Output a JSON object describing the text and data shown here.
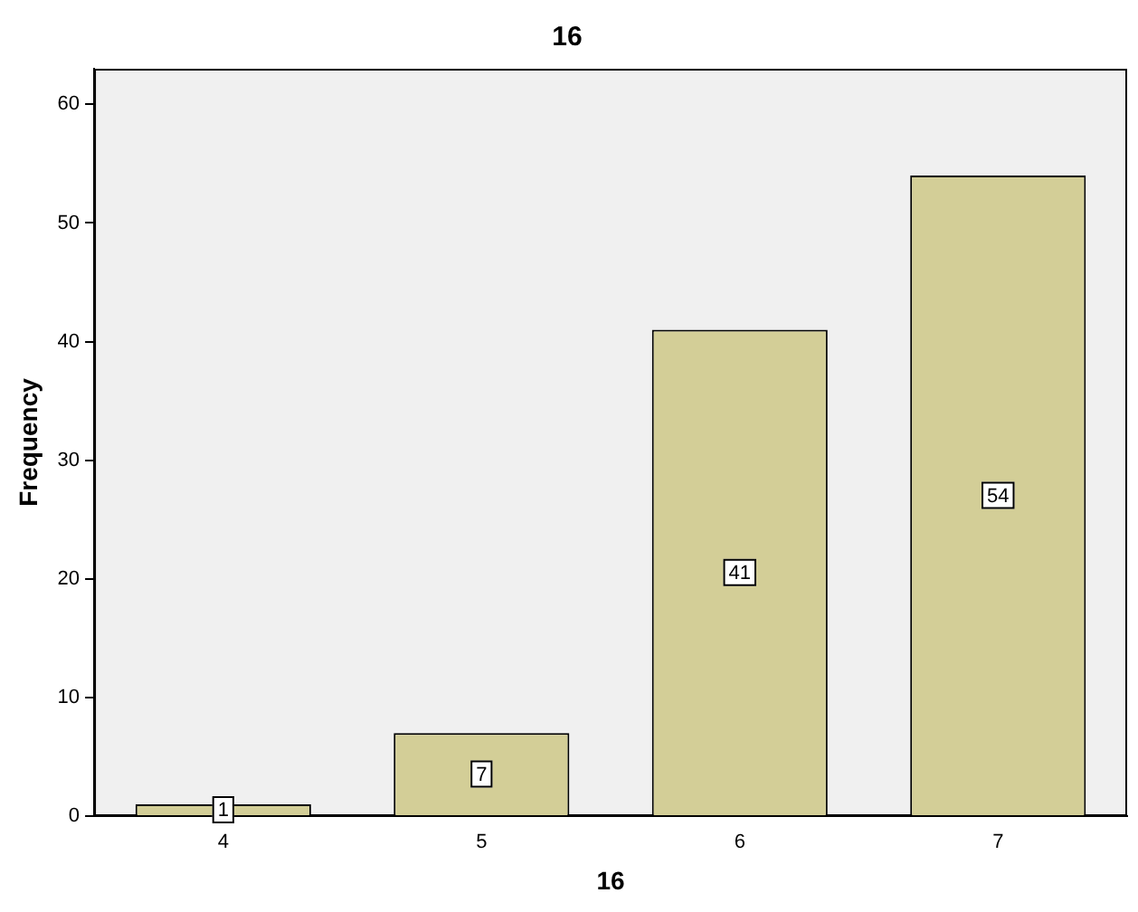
{
  "chart_data": {
    "type": "bar",
    "title": "16",
    "xlabel": "16",
    "ylabel": "Frequency",
    "categories": [
      "4",
      "5",
      "6",
      "7"
    ],
    "values": [
      1,
      7,
      41,
      54
    ],
    "color": "#d3ce97",
    "ylim": [
      0,
      63
    ],
    "yticks": [
      0,
      10,
      20,
      30,
      40,
      50,
      60
    ],
    "grid": false,
    "data_labels": true
  }
}
